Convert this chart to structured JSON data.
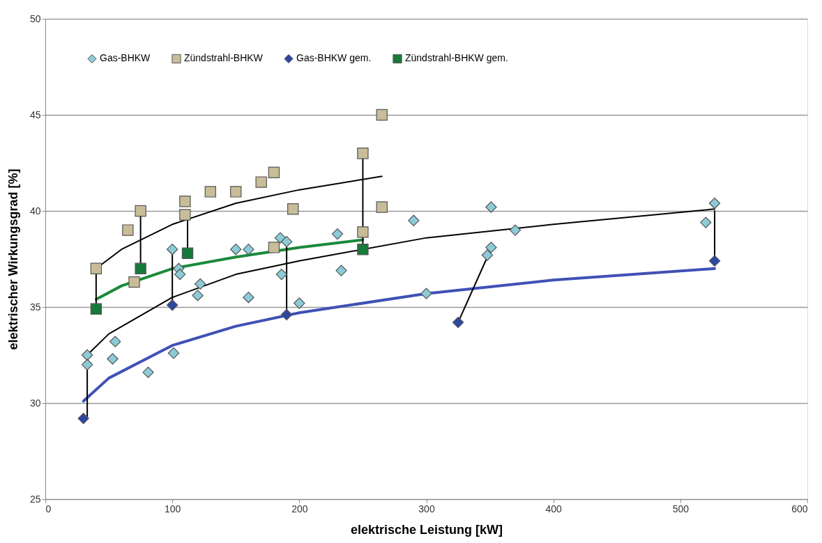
{
  "chart_data": {
    "type": "scatter",
    "xlabel": "elektrische Leistung [kW]",
    "ylabel": "elektrischer Wirkungsgrad [%]",
    "xlim": [
      0,
      600
    ],
    "xticks": [
      0,
      100,
      200,
      300,
      400,
      500,
      600
    ],
    "ylim": [
      25,
      50
    ],
    "yticks": [
      25,
      30,
      35,
      40,
      45,
      50
    ],
    "grid": "y",
    "legend": "top",
    "series": [
      {
        "type": "line",
        "color": "#3f51b5",
        "x": [
          30,
          50,
          100,
          150,
          200,
          300,
          400,
          527
        ],
        "values": [
          30.1,
          31.3,
          33.0,
          34.0,
          34.7,
          35.7,
          36.4,
          37.0
        ]
      },
      {
        "type": "line",
        "color": "#000000",
        "x": [
          33,
          50,
          100,
          150,
          200,
          300,
          400,
          527
        ],
        "values": [
          32.5,
          33.6,
          35.5,
          36.7,
          37.4,
          38.6,
          39.3,
          40.1
        ]
      },
      {
        "type": "line",
        "color": "#000000",
        "x": [
          40,
          60,
          100,
          150,
          200,
          265
        ],
        "values": [
          37.0,
          38.0,
          39.3,
          40.4,
          41.1,
          41.8
        ]
      },
      {
        "type": "line",
        "color": "#1a8a3a",
        "x": [
          40,
          60,
          100,
          150,
          200,
          250
        ],
        "values": [
          35.4,
          36.1,
          37.0,
          37.6,
          38.1,
          38.5
        ]
      },
      {
        "type": "line",
        "color": "#000000",
        "x": [
          33,
          33,
          null,
          40,
          40,
          null,
          75,
          75,
          null,
          100,
          100,
          null,
          112,
          112,
          null,
          190,
          190,
          null,
          250,
          250,
          null,
          325,
          348,
          null,
          527,
          527
        ],
        "values": [
          29.2,
          32.0,
          null,
          34.9,
          36.8,
          null,
          37.0,
          39.8,
          null,
          35.1,
          37.8,
          null,
          37.8,
          39.8,
          null,
          34.6,
          38.3,
          null,
          38.0,
          42.8,
          null,
          34.2,
          37.6,
          null,
          37.4,
          40.0
        ]
      },
      {
        "name": "Gas-BHKW",
        "marker": "diamond",
        "color": "#8ccbd8",
        "x": [
          33,
          33,
          53,
          55,
          81,
          100,
          101,
          105,
          106,
          122,
          120,
          150,
          160,
          160,
          185,
          190,
          186,
          200,
          230,
          233,
          290,
          300,
          348,
          351,
          351,
          370,
          520,
          527
        ],
        "values": [
          32.5,
          32.0,
          32.3,
          33.2,
          31.6,
          38.0,
          32.6,
          37.0,
          36.7,
          36.2,
          35.6,
          38.0,
          38.0,
          35.5,
          38.6,
          38.4,
          36.7,
          35.2,
          38.8,
          36.9,
          39.5,
          35.7,
          37.7,
          38.1,
          40.2,
          39.0,
          39.4,
          40.4
        ]
      },
      {
        "name": "Zündstrahl-BHKW",
        "marker": "square",
        "color": "#c8bd98",
        "x": [
          40,
          65,
          70,
          75,
          110,
          110,
          130,
          150,
          170,
          180,
          180,
          195,
          250,
          250,
          265,
          265
        ],
        "values": [
          37.0,
          39.0,
          36.3,
          40.0,
          39.8,
          40.5,
          41.0,
          41.0,
          41.5,
          42.0,
          38.1,
          40.1,
          43.0,
          38.9,
          45.0,
          40.2
        ]
      },
      {
        "name": "Gas-BHKW gem.",
        "marker": "diamond",
        "color": "#2e46a4",
        "x": [
          30,
          100,
          190,
          325,
          527
        ],
        "values": [
          29.2,
          35.1,
          34.6,
          34.2,
          37.4
        ]
      },
      {
        "name": "Zündstrahl-BHKW gem.",
        "marker": "square",
        "color": "#167a3a",
        "x": [
          40,
          75,
          112,
          250
        ],
        "values": [
          34.9,
          37.0,
          37.8,
          38.0
        ]
      }
    ]
  }
}
